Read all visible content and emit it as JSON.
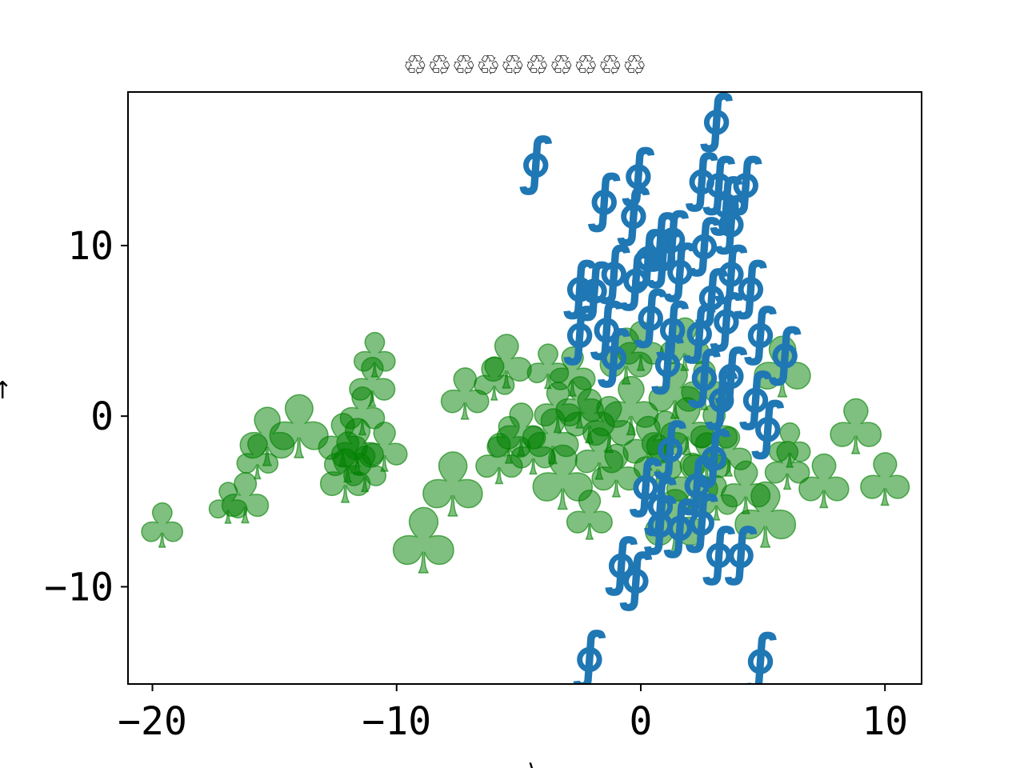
{
  "chart_data": {
    "type": "scatter",
    "title": "♲♲♲♲♲♲♲♲♲♲",
    "xlabel": "⟩",
    "ylabel": "↑",
    "xlim": [
      -21,
      11.5
    ],
    "ylim": [
      -15.7,
      19
    ],
    "xticks": [
      -20,
      -10,
      0,
      10
    ],
    "yticks": [
      -10,
      0,
      10
    ],
    "xtick_labels": [
      "−20",
      "−10",
      "0",
      "10"
    ],
    "ytick_labels": [
      "−10",
      "0",
      "10"
    ],
    "grid": false,
    "series": [
      {
        "marker": "∮",
        "color": "#1f77b4",
        "points": [
          [
            -4.3,
            15.0
          ],
          [
            3.1,
            17.5
          ],
          [
            -1.5,
            12.8
          ],
          [
            -0.1,
            14.3
          ],
          [
            2.5,
            14.0
          ],
          [
            3.2,
            13.8
          ],
          [
            4.3,
            13.8
          ],
          [
            3.5,
            12.6
          ],
          [
            3.7,
            11.5
          ],
          [
            -0.3,
            12.0
          ],
          [
            0.8,
            10.5
          ],
          [
            1.3,
            10.6
          ],
          [
            2.6,
            10.2
          ],
          [
            0.9,
            9.5
          ],
          [
            -1.1,
            8.6
          ],
          [
            -0.2,
            8.2
          ],
          [
            0.3,
            9.5
          ],
          [
            -2.5,
            7.7
          ],
          [
            -1.9,
            7.6
          ],
          [
            1.6,
            8.7
          ],
          [
            3.7,
            8.6
          ],
          [
            4.5,
            7.7
          ],
          [
            2.9,
            7.2
          ],
          [
            -2.5,
            5.0
          ],
          [
            -1.4,
            5.3
          ],
          [
            0.4,
            6.0
          ],
          [
            1.3,
            5.3
          ],
          [
            2.4,
            5.1
          ],
          [
            3.5,
            5.8
          ],
          [
            4.9,
            5.0
          ],
          [
            5.9,
            3.8
          ],
          [
            -1.1,
            3.7
          ],
          [
            1.1,
            3.3
          ],
          [
            2.6,
            2.5
          ],
          [
            3.7,
            2.6
          ],
          [
            4.7,
            1.2
          ],
          [
            3.3,
            1.2
          ],
          [
            5.2,
            -0.5
          ],
          [
            1.2,
            -1.7
          ],
          [
            3.0,
            -2.2
          ],
          [
            0.2,
            -3.9
          ],
          [
            2.3,
            -3.8
          ],
          [
            0.8,
            -5.0
          ],
          [
            1.6,
            -6.3
          ],
          [
            2.5,
            -6.0
          ],
          [
            0.8,
            -6.1
          ],
          [
            3.2,
            -7.9
          ],
          [
            4.1,
            -7.9
          ],
          [
            -0.8,
            -8.5
          ],
          [
            -0.2,
            -9.4
          ],
          [
            -2.1,
            -14.0
          ],
          [
            4.9,
            -14.1
          ]
        ]
      },
      {
        "marker": "♣",
        "color": "#008000",
        "points": [
          [
            -19.6,
            -6.4,
            76
          ],
          [
            -16.9,
            -5.1,
            70
          ],
          [
            -16.2,
            -4.8,
            86
          ],
          [
            -15.7,
            -2.4,
            76
          ],
          [
            -15.3,
            -1.2,
            100
          ],
          [
            -14.0,
            -0.6,
            108
          ],
          [
            -11.0,
            2.0,
            84
          ],
          [
            -10.9,
            3.6,
            76
          ],
          [
            -11.4,
            0.3,
            82
          ],
          [
            -12.2,
            -1.4,
            90
          ],
          [
            -11.6,
            -1.8,
            96
          ],
          [
            -12.0,
            -2.4,
            86
          ],
          [
            -12.1,
            -3.5,
            92
          ],
          [
            -11.3,
            -3.1,
            78
          ],
          [
            -10.5,
            -1.8,
            84
          ],
          [
            -8.9,
            -7.3,
            112
          ],
          [
            -7.7,
            -4.0,
            110
          ],
          [
            -7.2,
            1.3,
            88
          ],
          [
            -6.0,
            2.2,
            74
          ],
          [
            -5.5,
            3.2,
            92
          ],
          [
            -5.8,
            -2.5,
            86
          ],
          [
            -5.4,
            -1.4,
            80
          ],
          [
            -4.9,
            -0.8,
            90
          ],
          [
            -4.4,
            -2.0,
            82
          ],
          [
            -3.8,
            2.9,
            76
          ],
          [
            -3.4,
            0.5,
            86
          ],
          [
            -3.6,
            -1.2,
            94
          ],
          [
            -3.2,
            -3.6,
            110
          ],
          [
            -2.5,
            0.8,
            88
          ],
          [
            -2.8,
            2.6,
            84
          ],
          [
            -2.1,
            0.0,
            92
          ],
          [
            -1.7,
            -2.2,
            88
          ],
          [
            -1.3,
            -0.5,
            96
          ],
          [
            -2.1,
            -5.8,
            84
          ],
          [
            -1.0,
            -3.2,
            90
          ],
          [
            -0.6,
            3.5,
            96
          ],
          [
            -0.4,
            0.6,
            100
          ],
          [
            0.0,
            4.1,
            84
          ],
          [
            0.3,
            -1.6,
            92
          ],
          [
            0.7,
            -2.6,
            88
          ],
          [
            1.0,
            -1.2,
            86
          ],
          [
            1.4,
            1.5,
            96
          ],
          [
            1.4,
            -6.2,
            110
          ],
          [
            1.8,
            4.2,
            90
          ],
          [
            1.9,
            -0.6,
            98
          ],
          [
            2.1,
            -3.8,
            94
          ],
          [
            2.6,
            1.8,
            84
          ],
          [
            2.7,
            -2.5,
            88
          ],
          [
            3.0,
            -0.8,
            86
          ],
          [
            3.1,
            -4.8,
            76
          ],
          [
            3.6,
            -2.1,
            84
          ],
          [
            4.3,
            -4.2,
            90
          ],
          [
            5.1,
            -5.8,
            112
          ],
          [
            5.8,
            2.9,
            104
          ],
          [
            6.1,
            -1.7,
            76
          ],
          [
            6.0,
            -2.9,
            82
          ],
          [
            7.5,
            -3.8,
            92
          ],
          [
            8.8,
            -0.6,
            94
          ],
          [
            10.0,
            -3.7,
            90
          ]
        ]
      }
    ]
  }
}
